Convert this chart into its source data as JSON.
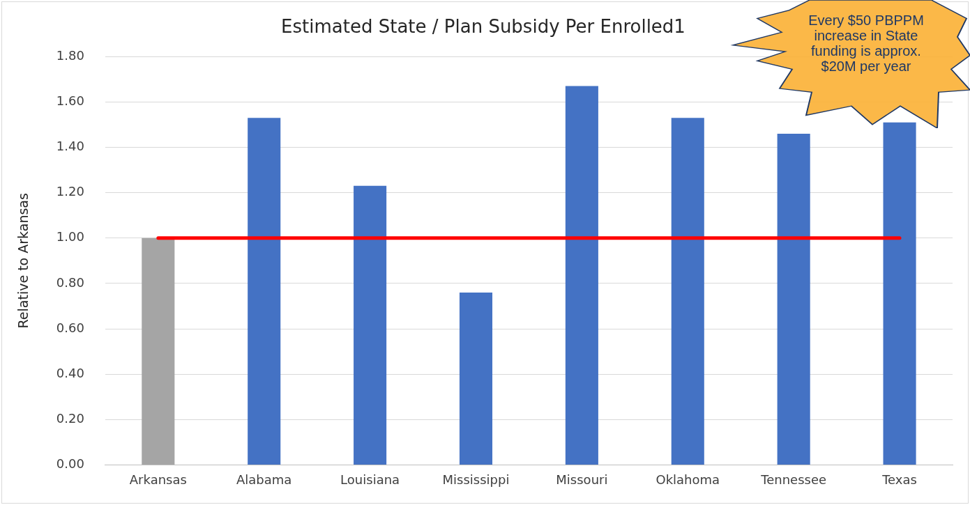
{
  "chart_data": {
    "type": "bar",
    "title": "Estimated State / Plan Subsidy Per Enrolled1",
    "ylabel": "Relative to Arkansas",
    "categories": [
      "Arkansas",
      "Alabama",
      "Louisiana",
      "Mississippi",
      "Missouri",
      "Oklahoma",
      "Tennessee",
      "Texas"
    ],
    "values": [
      1.0,
      1.53,
      1.23,
      0.76,
      1.67,
      1.53,
      1.46,
      1.51
    ],
    "colors": [
      "#a5a5a5",
      "#4472c4",
      "#4472c4",
      "#4472c4",
      "#4472c4",
      "#4472c4",
      "#4472c4",
      "#4472c4"
    ],
    "ylim": [
      0,
      1.8
    ],
    "yticks": [
      {
        "value": 0,
        "label": "0.00"
      },
      {
        "value": 0.2,
        "label": "0.20"
      },
      {
        "value": 0.4,
        "label": "0.40"
      },
      {
        "value": 0.6,
        "label": "0.60"
      },
      {
        "value": 0.8,
        "label": "0.80"
      },
      {
        "value": 1,
        "label": "1.00"
      },
      {
        "value": 1.2,
        "label": "1.20"
      },
      {
        "value": 1.4,
        "label": "1.40"
      },
      {
        "value": 1.6,
        "label": "1.60"
      },
      {
        "value": 1.8,
        "label": "1.80"
      }
    ],
    "grid": "y",
    "legend": false,
    "ref_lines": [
      {
        "axis": "y",
        "value": 1,
        "color": "#ff0000"
      }
    ],
    "annotations": [
      "Every $50 PBPPM increase in State funding is approx. $20M per year"
    ]
  }
}
